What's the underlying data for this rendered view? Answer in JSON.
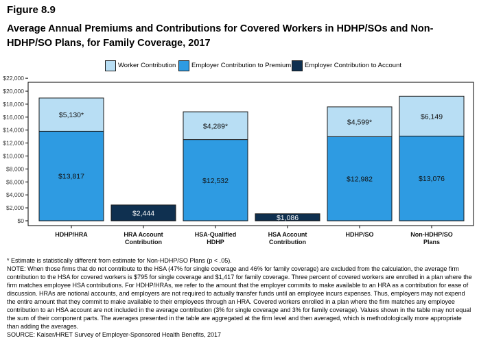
{
  "figure_label": "Figure 8.9",
  "title": "Average Annual Premiums and Contributions for Covered Workers in HDHP/SOs and Non-HDHP/SO Plans, for Family Coverage, 2017",
  "colors": {
    "worker": "#b8def4",
    "employer_premium": "#2e9be2",
    "employer_account": "#0f3050",
    "border": "#1a1a1a"
  },
  "chart_data": {
    "type": "bar",
    "stacked": true,
    "categories": [
      [
        "HDHP/HRA"
      ],
      [
        "HRA Account",
        "Contribution"
      ],
      [
        "HSA-Qualified",
        "HDHP"
      ],
      [
        "HSA Account",
        "Contribution"
      ],
      [
        "HDHP/SO"
      ],
      [
        "Non-HDHP/SO",
        "Plans"
      ]
    ],
    "series": [
      {
        "name": "Worker Contribution",
        "color": "#b8def4",
        "values": [
          5130,
          null,
          4289,
          null,
          4599,
          6149
        ],
        "labels": [
          "$5,130*",
          null,
          "$4,289*",
          null,
          "$4,599*",
          "$6,149"
        ]
      },
      {
        "name": "Employer Contribution to Premium",
        "color": "#2e9be2",
        "values": [
          13817,
          null,
          12532,
          null,
          12982,
          13076
        ],
        "labels": [
          "$13,817",
          null,
          "$12,532",
          null,
          "$12,982",
          "$13,076"
        ]
      },
      {
        "name": "Employer Contribution to Account",
        "color": "#0f3050",
        "values": [
          null,
          2444,
          null,
          1086,
          null,
          null
        ],
        "labels": [
          null,
          "$2,444",
          null,
          "$1,086",
          null,
          null
        ]
      }
    ],
    "yticks": [
      "$0",
      "$2,000",
      "$4,000",
      "$6,000",
      "$8,000",
      "$10,000",
      "$12,000",
      "$14,000",
      "$16,000",
      "$18,000",
      "$20,000",
      "$22,000"
    ],
    "ylim": [
      0,
      22000
    ],
    "grid": false,
    "legend_position": "top"
  },
  "notes": [
    "* Estimate is statistically different from estimate for Non-HDHP/SO Plans (p < .05).",
    "NOTE: When those firms that do not contribute to the HSA (47% for single coverage and 46% for family coverage) are excluded from the calculation, the average firm contribution to the HSA for covered workers is $795 for single coverage and $1,417 for family coverage. Three percent of covered workers are enrolled in a plan where the firm matches employee HSA contributions.  For HDHP/HRAs, we refer to the amount that the employer commits to make available to an HRA as a contribution for ease of discussion. HRAs are notional accounts, and employers are not required to actually transfer funds until an employee incurs expenses. Thus, employers may not expend the entire amount that they commit to make available to their employees through an HRA.  Covered workers enrolled in a plan where the firm matches any employee contribution to an HSA account are not included in the average contribution (3% for single coverage and 3% for family coverage).  Values shown in the table may not equal the sum of their component parts. The averages presented in the table are aggregated at the firm level and then averaged, which is methodologically more appropriate than adding the averages.",
    "SOURCE: Kaiser/HRET Survey of Employer-Sponsored Health Benefits, 2017"
  ]
}
